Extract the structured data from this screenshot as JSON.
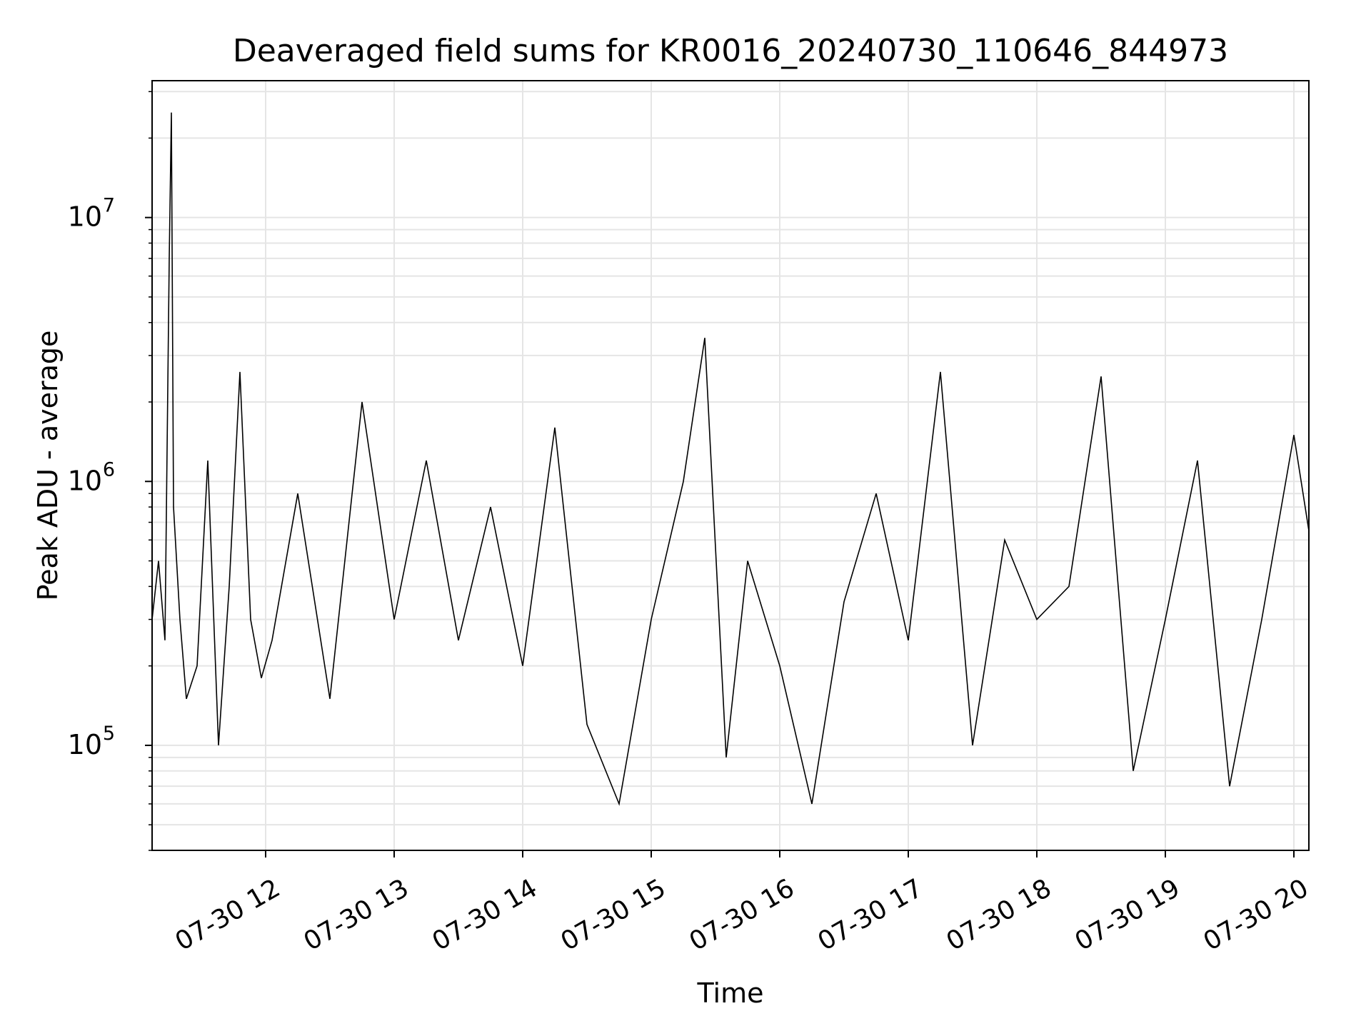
{
  "chart_data": {
    "type": "line",
    "title": "Deaveraged field sums for KR0016_20240730_110646_844973",
    "xlabel": "Time",
    "ylabel": "Peak ADU - average",
    "yscale": "log",
    "xlim": [
      "2024-07-30 11:07",
      "2024-07-30 20:07"
    ],
    "ylim": [
      40000,
      33000000
    ],
    "grid": true,
    "line_color": "#000000",
    "grid_color": "#e5e5e5",
    "x_ticks": [
      {
        "label": "07-30 12",
        "value": "2024-07-30 12:00"
      },
      {
        "label": "07-30 13",
        "value": "2024-07-30 13:00"
      },
      {
        "label": "07-30 14",
        "value": "2024-07-30 14:00"
      },
      {
        "label": "07-30 15",
        "value": "2024-07-30 15:00"
      },
      {
        "label": "07-30 16",
        "value": "2024-07-30 16:00"
      },
      {
        "label": "07-30 17",
        "value": "2024-07-30 17:00"
      },
      {
        "label": "07-30 18",
        "value": "2024-07-30 18:00"
      },
      {
        "label": "07-30 19",
        "value": "2024-07-30 19:00"
      },
      {
        "label": "07-30 20",
        "value": "2024-07-30 20:00"
      }
    ],
    "y_ticks": [
      {
        "base": "10",
        "exp": "5",
        "value": 100000
      },
      {
        "base": "10",
        "exp": "6",
        "value": 1000000
      },
      {
        "base": "10",
        "exp": "7",
        "value": 10000000
      }
    ],
    "series": [
      {
        "x": [
          "2024-07-30 11:07",
          "2024-07-30 11:10",
          "2024-07-30 11:13",
          "2024-07-30 11:15",
          "2024-07-30 11:16",
          "2024-07-30 11:17",
          "2024-07-30 11:20",
          "2024-07-30 11:23",
          "2024-07-30 11:28",
          "2024-07-30 11:33",
          "2024-07-30 11:38",
          "2024-07-30 11:43",
          "2024-07-30 11:48",
          "2024-07-30 11:53",
          "2024-07-30 11:58",
          "2024-07-30 12:03",
          "2024-07-30 12:15",
          "2024-07-30 12:30",
          "2024-07-30 12:45",
          "2024-07-30 13:00",
          "2024-07-30 13:15",
          "2024-07-30 13:30",
          "2024-07-30 13:45",
          "2024-07-30 14:00",
          "2024-07-30 14:15",
          "2024-07-30 14:30",
          "2024-07-30 14:45",
          "2024-07-30 15:00",
          "2024-07-30 15:15",
          "2024-07-30 15:25",
          "2024-07-30 15:35",
          "2024-07-30 15:45",
          "2024-07-30 16:00",
          "2024-07-30 16:15",
          "2024-07-30 16:30",
          "2024-07-30 16:45",
          "2024-07-30 17:00",
          "2024-07-30 17:15",
          "2024-07-30 17:30",
          "2024-07-30 17:45",
          "2024-07-30 18:00",
          "2024-07-30 18:15",
          "2024-07-30 18:30",
          "2024-07-30 18:45",
          "2024-07-30 19:00",
          "2024-07-30 19:15",
          "2024-07-30 19:30",
          "2024-07-30 19:45",
          "2024-07-30 20:00",
          "2024-07-30 20:07"
        ],
        "y": [
          300000,
          500000,
          250000,
          7000000,
          25000000,
          800000,
          300000,
          150000,
          200000,
          1200000,
          100000,
          400000,
          2600000,
          300000,
          180000,
          250000,
          900000,
          150000,
          2000000,
          300000,
          1200000,
          250000,
          800000,
          200000,
          1600000,
          120000,
          60000,
          300000,
          1000000,
          3500000,
          90000,
          500000,
          200000,
          60000,
          350000,
          900000,
          250000,
          2600000,
          100000,
          600000,
          300000,
          400000,
          2500000,
          80000,
          300000,
          1200000,
          70000,
          300000,
          1500000,
          650000
        ]
      }
    ]
  }
}
